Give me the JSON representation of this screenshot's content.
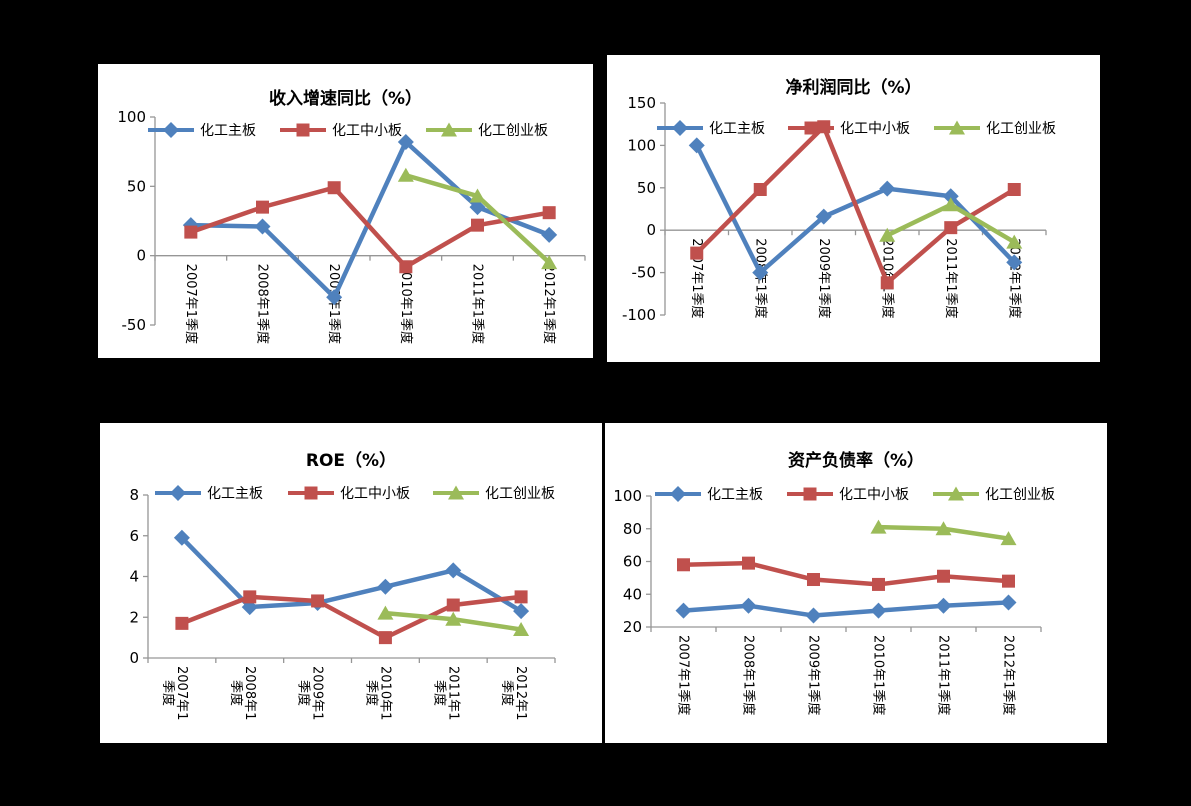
{
  "style": {
    "page_background": "#000000",
    "panel_background": "#ffffff",
    "axis_color": "#969696",
    "text_color": "#000000",
    "series_blue": "#4F81BD",
    "series_red": "#C0504D",
    "series_green": "#9BBB59"
  },
  "legend_labels": [
    "化工主板",
    "化工中小板",
    "化工创业板"
  ],
  "chart_data": [
    {
      "type": "line",
      "title": "收入增速同比（%）",
      "categories": [
        "2007年1季度",
        "2008年1季度",
        "2009年1季度",
        "2010年1季度",
        "2011年1季度",
        "2012年1季度"
      ],
      "ylim": [
        -50,
        100
      ],
      "yticks": [
        -50,
        0,
        50,
        100
      ],
      "grid": false,
      "legend_position": "top-inside",
      "series": [
        {
          "name": "化工主板",
          "key": "main-board",
          "marker": "diamond",
          "color": "#4F81BD",
          "values": [
            22,
            21,
            -30,
            82,
            35,
            15
          ]
        },
        {
          "name": "化工中小板",
          "key": "sme-board",
          "marker": "square",
          "color": "#C0504D",
          "values": [
            17,
            35,
            49,
            -8,
            22,
            31
          ]
        },
        {
          "name": "化工创业板",
          "key": "gem-board",
          "marker": "triangle",
          "color": "#9BBB59",
          "values": [
            null,
            null,
            null,
            58,
            43,
            -5
          ]
        }
      ]
    },
    {
      "type": "line",
      "title": "净利润同比（%）",
      "categories": [
        "2007年1季度",
        "2008年1季度",
        "2009年1季度",
        "2010年1季度",
        "2011年1季度",
        "2012年1季度"
      ],
      "ylim": [
        -100,
        150
      ],
      "yticks": [
        -100,
        -50,
        0,
        50,
        100,
        150
      ],
      "grid": false,
      "legend_position": "top-inside",
      "series": [
        {
          "name": "化工主板",
          "key": "main-board",
          "marker": "diamond",
          "color": "#4F81BD",
          "values": [
            100,
            -50,
            16,
            49,
            40,
            -38
          ]
        },
        {
          "name": "化工中小板",
          "key": "sme-board",
          "marker": "square",
          "color": "#C0504D",
          "values": [
            -27,
            48,
            122,
            -62,
            3,
            48
          ]
        },
        {
          "name": "化工创业板",
          "key": "gem-board",
          "marker": "triangle",
          "color": "#9BBB59",
          "values": [
            null,
            null,
            null,
            -6,
            30,
            -14
          ]
        }
      ]
    },
    {
      "type": "line",
      "title": "ROE（%）",
      "categories": [
        "2007年1季度",
        "2008年1季度",
        "2009年1季度",
        "2010年1季度",
        "2011年1季度",
        "2012年1季度"
      ],
      "ylim": [
        0,
        8
      ],
      "yticks": [
        0,
        2,
        4,
        6,
        8
      ],
      "grid": false,
      "legend_position": "top-inside",
      "x_label_wrap": true,
      "series": [
        {
          "name": "化工主板",
          "key": "main-board",
          "marker": "diamond",
          "color": "#4F81BD",
          "values": [
            5.9,
            2.5,
            2.7,
            3.5,
            4.3,
            2.3
          ]
        },
        {
          "name": "化工中小板",
          "key": "sme-board",
          "marker": "square",
          "color": "#C0504D",
          "values": [
            1.7,
            3.0,
            2.8,
            1.0,
            2.6,
            3.0
          ]
        },
        {
          "name": "化工创业板",
          "key": "gem-board",
          "marker": "triangle",
          "color": "#9BBB59",
          "values": [
            null,
            null,
            null,
            2.2,
            1.9,
            1.4
          ]
        }
      ]
    },
    {
      "type": "line",
      "title": "资产负债率（%）",
      "categories": [
        "2007年1季度",
        "2008年1季度",
        "2009年1季度",
        "2010年1季度",
        "2011年1季度",
        "2012年1季度"
      ],
      "ylim": [
        20,
        100
      ],
      "yticks": [
        20,
        40,
        60,
        80,
        100
      ],
      "grid": false,
      "legend_position": "top-inside",
      "series": [
        {
          "name": "化工主板",
          "key": "main-board",
          "marker": "diamond",
          "color": "#4F81BD",
          "values": [
            30,
            33,
            27,
            30,
            33,
            35
          ]
        },
        {
          "name": "化工中小板",
          "key": "sme-board",
          "marker": "square",
          "color": "#C0504D",
          "values": [
            58,
            59,
            49,
            46,
            51,
            48
          ]
        },
        {
          "name": "化工创业板",
          "key": "gem-board",
          "marker": "triangle",
          "color": "#9BBB59",
          "values": [
            null,
            null,
            null,
            81,
            80,
            74
          ]
        }
      ]
    }
  ]
}
